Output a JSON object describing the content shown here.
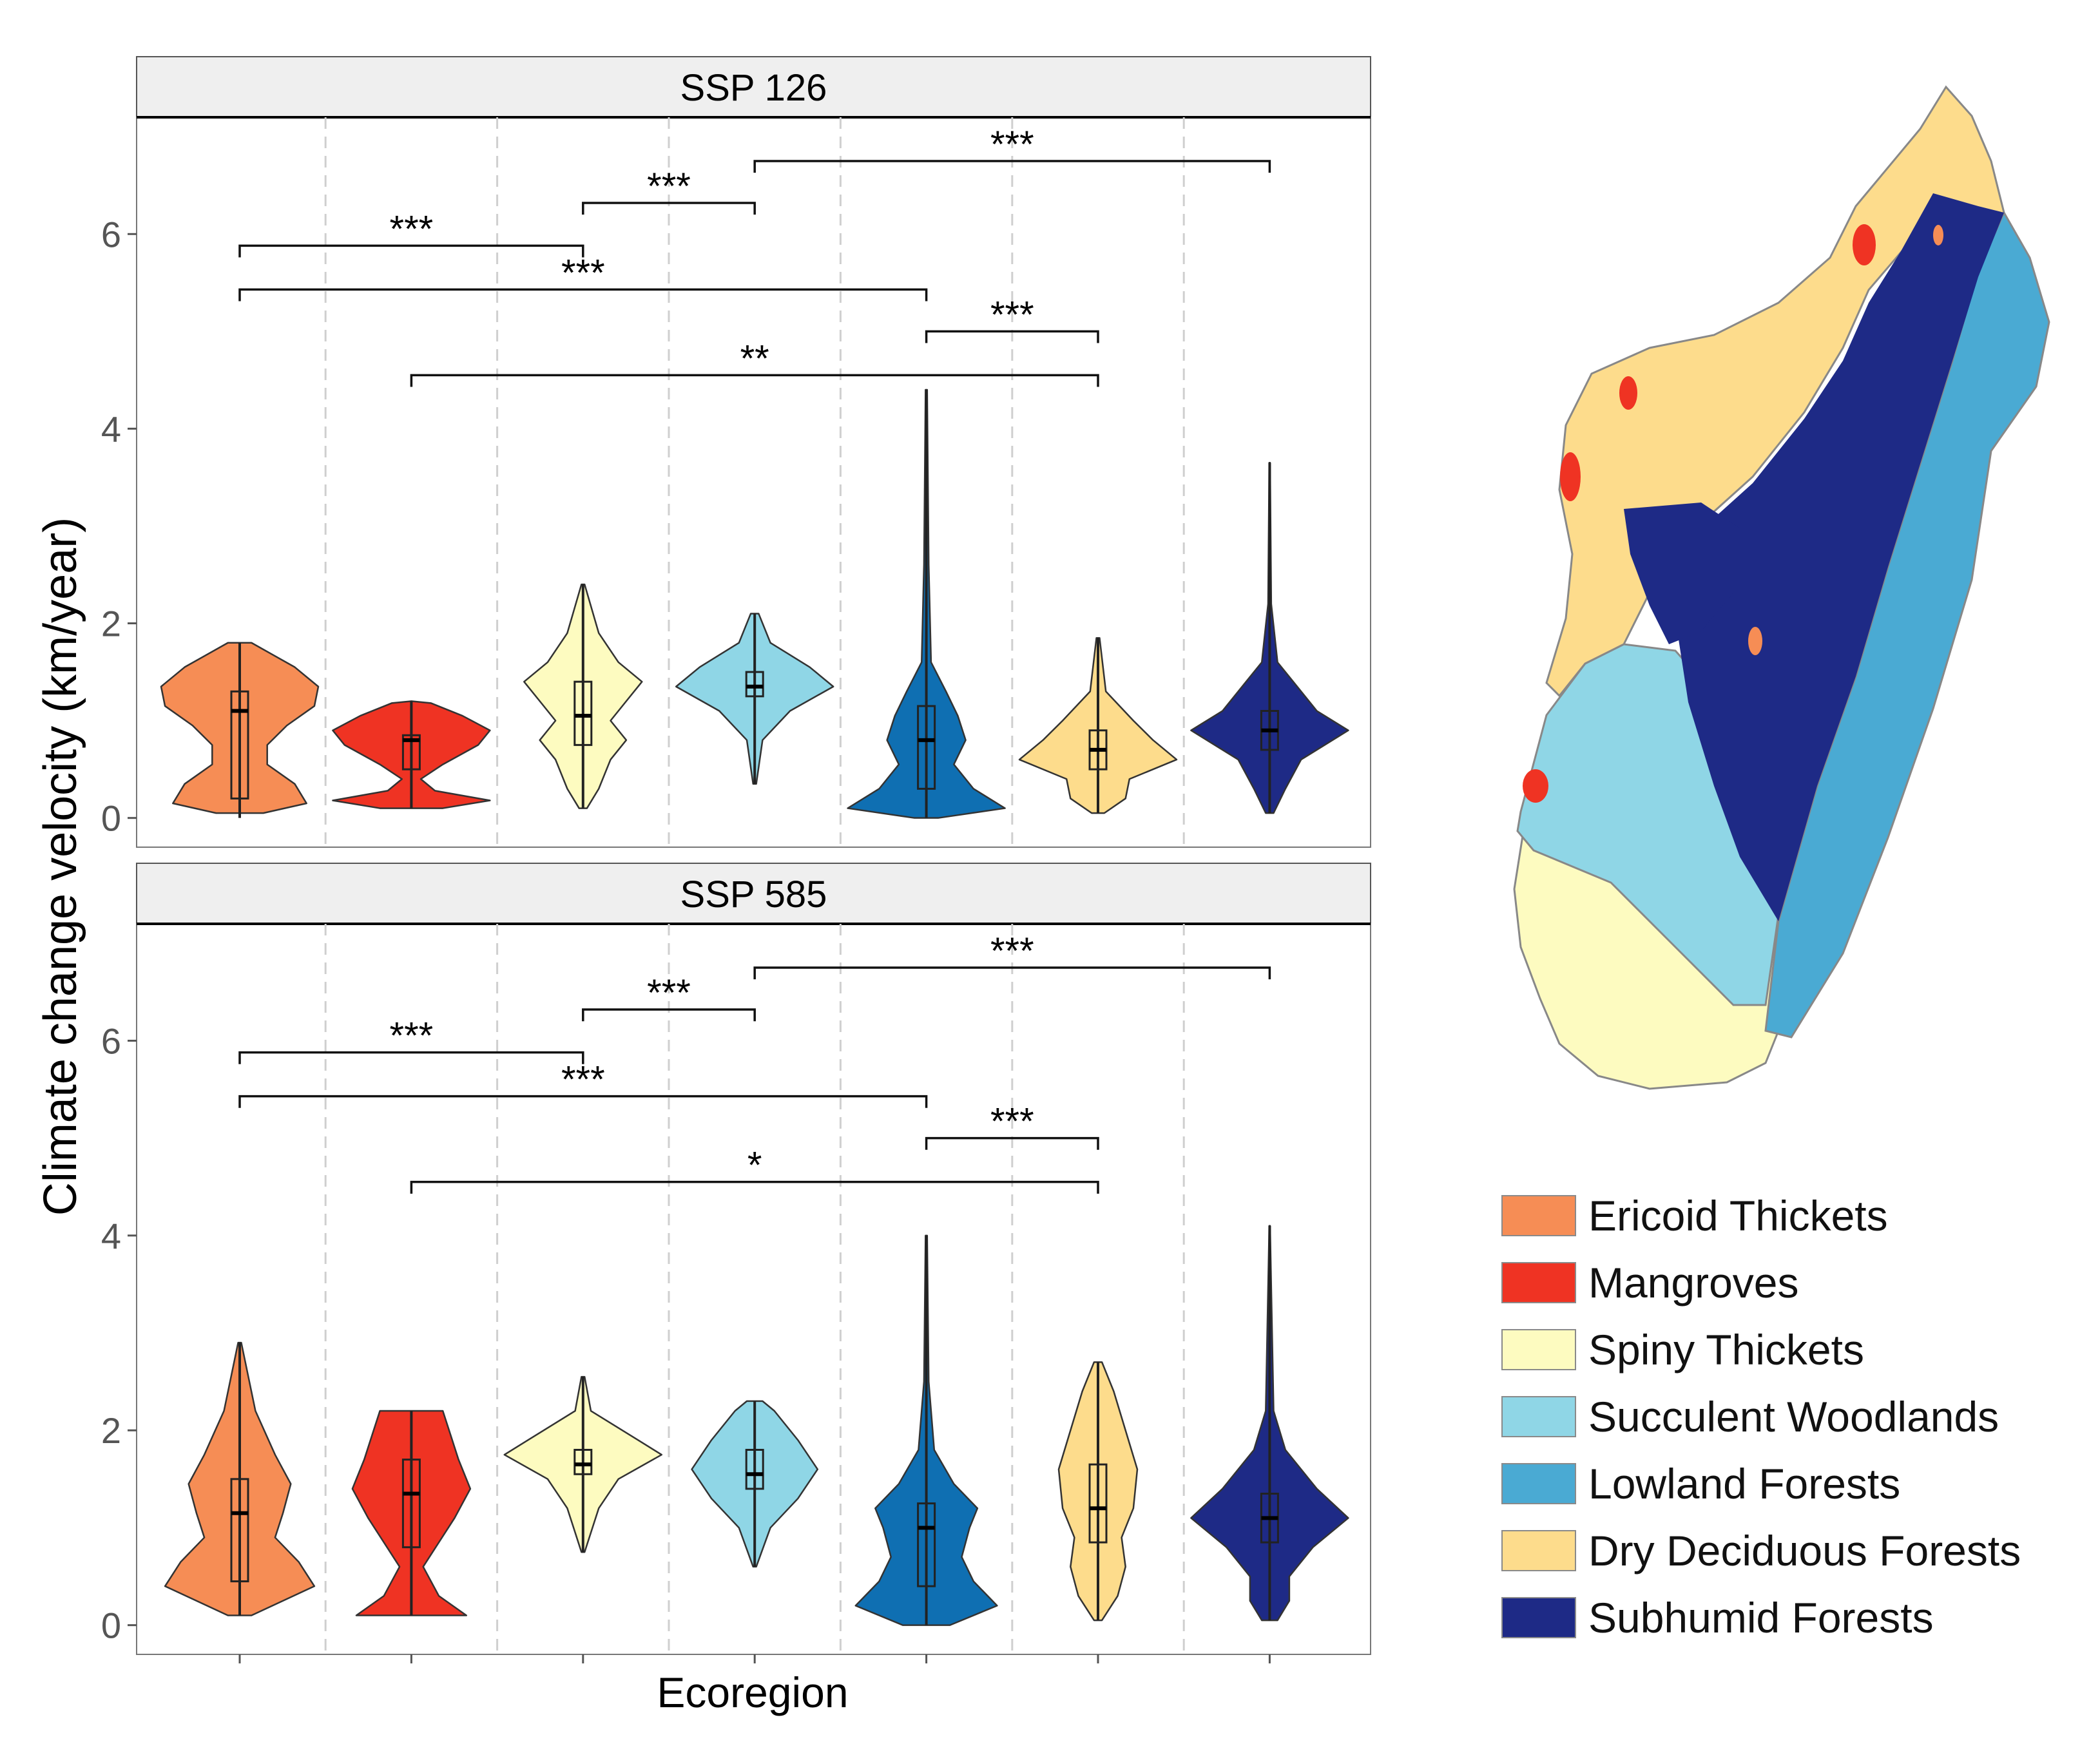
{
  "chart_data": [
    {
      "type": "violin",
      "panel": "SSP 126",
      "ylabel": "Climate change velocity (km/year)",
      "xlabel": "Ecoregion",
      "ylim": [
        -0.3,
        7.2
      ],
      "yticks": [
        0,
        2,
        4,
        6
      ],
      "grid": "vertical dashed",
      "categories": [
        "Ericoid Thickets",
        "Mangroves",
        "Spiny Thickets",
        "Succulent Woodlands",
        "Lowland Forests",
        "Dry Deciduous Forests",
        "Subhumid Forests"
      ],
      "series": [
        {
          "name": "Ericoid Thickets",
          "min": 0.0,
          "q1": 0.2,
          "median": 1.1,
          "q3": 1.3,
          "max": 1.8,
          "density": [
            [
              0.05,
              0.3
            ],
            [
              0.15,
              0.85
            ],
            [
              0.35,
              0.7
            ],
            [
              0.55,
              0.35
            ],
            [
              0.75,
              0.35
            ],
            [
              0.95,
              0.6
            ],
            [
              1.15,
              0.95
            ],
            [
              1.35,
              1.0
            ],
            [
              1.55,
              0.7
            ],
            [
              1.8,
              0.15
            ]
          ]
        },
        {
          "name": "Mangroves",
          "min": 0.1,
          "q1": 0.5,
          "median": 0.8,
          "q3": 0.85,
          "max": 1.2,
          "density": [
            [
              0.1,
              0.4
            ],
            [
              0.18,
              1.0
            ],
            [
              0.28,
              0.3
            ],
            [
              0.4,
              0.12
            ],
            [
              0.55,
              0.4
            ],
            [
              0.75,
              0.85
            ],
            [
              0.9,
              1.0
            ],
            [
              1.05,
              0.65
            ],
            [
              1.18,
              0.25
            ]
          ]
        },
        {
          "name": "Spiny Thickets",
          "min": 0.1,
          "q1": 0.75,
          "median": 1.05,
          "q3": 1.4,
          "max": 2.4,
          "density": [
            [
              0.1,
              0.05
            ],
            [
              0.3,
              0.2
            ],
            [
              0.6,
              0.35
            ],
            [
              0.8,
              0.55
            ],
            [
              1.0,
              0.35
            ],
            [
              1.2,
              0.55
            ],
            [
              1.4,
              0.75
            ],
            [
              1.6,
              0.45
            ],
            [
              1.9,
              0.2
            ],
            [
              2.4,
              0.02
            ]
          ]
        },
        {
          "name": "Succulent Woodlands",
          "min": 0.35,
          "q1": 1.25,
          "median": 1.35,
          "q3": 1.5,
          "max": 2.1,
          "density": [
            [
              0.35,
              0.02
            ],
            [
              0.8,
              0.1
            ],
            [
              1.1,
              0.45
            ],
            [
              1.35,
              1.0
            ],
            [
              1.55,
              0.7
            ],
            [
              1.8,
              0.2
            ],
            [
              2.1,
              0.05
            ]
          ]
        },
        {
          "name": "Lowland Forests",
          "min": 0.0,
          "q1": 0.3,
          "median": 0.8,
          "q3": 1.15,
          "max": 4.4,
          "density": [
            [
              0.0,
              0.15
            ],
            [
              0.1,
              1.0
            ],
            [
              0.3,
              0.6
            ],
            [
              0.55,
              0.35
            ],
            [
              0.8,
              0.5
            ],
            [
              1.05,
              0.4
            ],
            [
              1.3,
              0.25
            ],
            [
              1.6,
              0.06
            ],
            [
              2.6,
              0.03
            ],
            [
              4.4,
              0.01
            ]
          ]
        },
        {
          "name": "Dry Deciduous Forests",
          "min": 0.05,
          "q1": 0.5,
          "median": 0.7,
          "q3": 0.9,
          "max": 1.85,
          "density": [
            [
              0.05,
              0.08
            ],
            [
              0.2,
              0.35
            ],
            [
              0.4,
              0.4
            ],
            [
              0.6,
              1.0
            ],
            [
              0.8,
              0.7
            ],
            [
              1.0,
              0.45
            ],
            [
              1.3,
              0.1
            ],
            [
              1.85,
              0.02
            ]
          ]
        },
        {
          "name": "Subhumid Forests",
          "min": 0.05,
          "q1": 0.7,
          "median": 0.9,
          "q3": 1.1,
          "max": 3.65,
          "density": [
            [
              0.05,
              0.05
            ],
            [
              0.3,
              0.2
            ],
            [
              0.6,
              0.4
            ],
            [
              0.9,
              1.0
            ],
            [
              1.1,
              0.6
            ],
            [
              1.4,
              0.3
            ],
            [
              1.6,
              0.1
            ],
            [
              2.2,
              0.02
            ],
            [
              3.65,
              0.005
            ]
          ]
        }
      ],
      "comparisons": [
        {
          "from": 1,
          "to": 3,
          "label": "***"
        },
        {
          "from": 3,
          "to": 4,
          "label": "***"
        },
        {
          "from": 4,
          "to": 7,
          "label": "***"
        },
        {
          "from": 1,
          "to": 5,
          "label": "***"
        },
        {
          "from": 5,
          "to": 6,
          "label": "***"
        },
        {
          "from": 2,
          "to": 6,
          "label": "**"
        }
      ]
    },
    {
      "type": "violin",
      "panel": "SSP 585",
      "ylabel": "Climate change velocity (km/year)",
      "xlabel": "Ecoregion",
      "ylim": [
        -0.3,
        7.2
      ],
      "yticks": [
        0,
        2,
        4,
        6
      ],
      "grid": "vertical dashed",
      "categories": [
        "Ericoid Thickets",
        "Mangroves",
        "Spiny Thickets",
        "Succulent Woodlands",
        "Lowland Forests",
        "Dry Deciduous Forests",
        "Subhumid Forests"
      ],
      "series": [
        {
          "name": "Ericoid Thickets",
          "min": 0.1,
          "q1": 0.45,
          "median": 1.15,
          "q3": 1.5,
          "max": 2.9,
          "density": [
            [
              0.1,
              0.15
            ],
            [
              0.4,
              0.95
            ],
            [
              0.65,
              0.75
            ],
            [
              0.9,
              0.45
            ],
            [
              1.15,
              0.55
            ],
            [
              1.45,
              0.65
            ],
            [
              1.75,
              0.45
            ],
            [
              2.2,
              0.2
            ],
            [
              2.9,
              0.02
            ]
          ]
        },
        {
          "name": "Mangroves",
          "min": 0.1,
          "q1": 0.8,
          "median": 1.35,
          "q3": 1.7,
          "max": 2.2,
          "density": [
            [
              0.1,
              0.7
            ],
            [
              0.3,
              0.35
            ],
            [
              0.6,
              0.15
            ],
            [
              0.85,
              0.35
            ],
            [
              1.1,
              0.55
            ],
            [
              1.4,
              0.75
            ],
            [
              1.7,
              0.6
            ],
            [
              1.95,
              0.5
            ],
            [
              2.2,
              0.4
            ]
          ]
        },
        {
          "name": "Spiny Thickets",
          "min": 0.75,
          "q1": 1.55,
          "median": 1.65,
          "q3": 1.8,
          "max": 2.55,
          "density": [
            [
              0.75,
              0.02
            ],
            [
              1.2,
              0.2
            ],
            [
              1.5,
              0.45
            ],
            [
              1.75,
              1.0
            ],
            [
              1.9,
              0.7
            ],
            [
              2.2,
              0.1
            ],
            [
              2.55,
              0.02
            ]
          ]
        },
        {
          "name": "Succulent Woodlands",
          "min": 0.6,
          "q1": 1.4,
          "median": 1.55,
          "q3": 1.8,
          "max": 2.3,
          "density": [
            [
              0.6,
              0.02
            ],
            [
              1.0,
              0.2
            ],
            [
              1.3,
              0.55
            ],
            [
              1.6,
              0.8
            ],
            [
              1.9,
              0.55
            ],
            [
              2.2,
              0.25
            ],
            [
              2.3,
              0.1
            ]
          ]
        },
        {
          "name": "Lowland Forests",
          "min": 0.0,
          "q1": 0.4,
          "median": 1.0,
          "q3": 1.25,
          "max": 4.0,
          "density": [
            [
              0.0,
              0.3
            ],
            [
              0.2,
              0.9
            ],
            [
              0.45,
              0.6
            ],
            [
              0.7,
              0.45
            ],
            [
              1.0,
              0.55
            ],
            [
              1.2,
              0.65
            ],
            [
              1.45,
              0.35
            ],
            [
              1.8,
              0.1
            ],
            [
              2.5,
              0.03
            ],
            [
              4.0,
              0.01
            ]
          ]
        },
        {
          "name": "Dry Deciduous Forests",
          "min": 0.05,
          "q1": 0.85,
          "median": 1.2,
          "q3": 1.65,
          "max": 2.7,
          "density": [
            [
              0.05,
              0.05
            ],
            [
              0.3,
              0.25
            ],
            [
              0.6,
              0.35
            ],
            [
              0.9,
              0.3
            ],
            [
              1.2,
              0.45
            ],
            [
              1.6,
              0.5
            ],
            [
              2.0,
              0.35
            ],
            [
              2.4,
              0.2
            ],
            [
              2.7,
              0.05
            ]
          ]
        },
        {
          "name": "Subhumid Forests",
          "min": 0.05,
          "q1": 0.85,
          "median": 1.1,
          "q3": 1.35,
          "max": 4.1,
          "density": [
            [
              0.05,
              0.1
            ],
            [
              0.25,
              0.25
            ],
            [
              0.5,
              0.25
            ],
            [
              0.8,
              0.55
            ],
            [
              1.1,
              1.0
            ],
            [
              1.4,
              0.6
            ],
            [
              1.8,
              0.2
            ],
            [
              2.2,
              0.05
            ],
            [
              4.1,
              0.005
            ]
          ]
        }
      ],
      "comparisons": [
        {
          "from": 1,
          "to": 3,
          "label": "***"
        },
        {
          "from": 3,
          "to": 4,
          "label": "***"
        },
        {
          "from": 4,
          "to": 7,
          "label": "***"
        },
        {
          "from": 1,
          "to": 5,
          "label": "***"
        },
        {
          "from": 5,
          "to": 6,
          "label": "***"
        },
        {
          "from": 2,
          "to": 6,
          "label": "*"
        }
      ]
    }
  ],
  "colors": {
    "Ericoid Thickets": "#f68d55",
    "Mangroves": "#ef3323",
    "Spiny Thickets": "#fdfbc0",
    "Succulent Woodlands": "#8fd6e6",
    "Lowland Forests": "#0f6fb2",
    "Dry Deciduous Forests": "#fddc8c",
    "Subhumid Forests": "#1e2a86",
    "map_lowland": "#4aaad3"
  },
  "legend": {
    "placement": "right",
    "items": [
      {
        "label": "Ericoid Thickets",
        "color": "#f68d55"
      },
      {
        "label": "Mangroves",
        "color": "#ef3323"
      },
      {
        "label": "Spiny Thickets",
        "color": "#fdfbc0"
      },
      {
        "label": "Succulent Woodlands",
        "color": "#8fd6e6"
      },
      {
        "label": "Lowland Forests",
        "color": "#4aaad3"
      },
      {
        "label": "Dry Deciduous Forests",
        "color": "#fddc8c"
      },
      {
        "label": "Subhumid Forests",
        "color": "#1e2a86"
      }
    ]
  },
  "map": {
    "region": "Madagascar ecoregions",
    "icon": "madagascar-map"
  }
}
